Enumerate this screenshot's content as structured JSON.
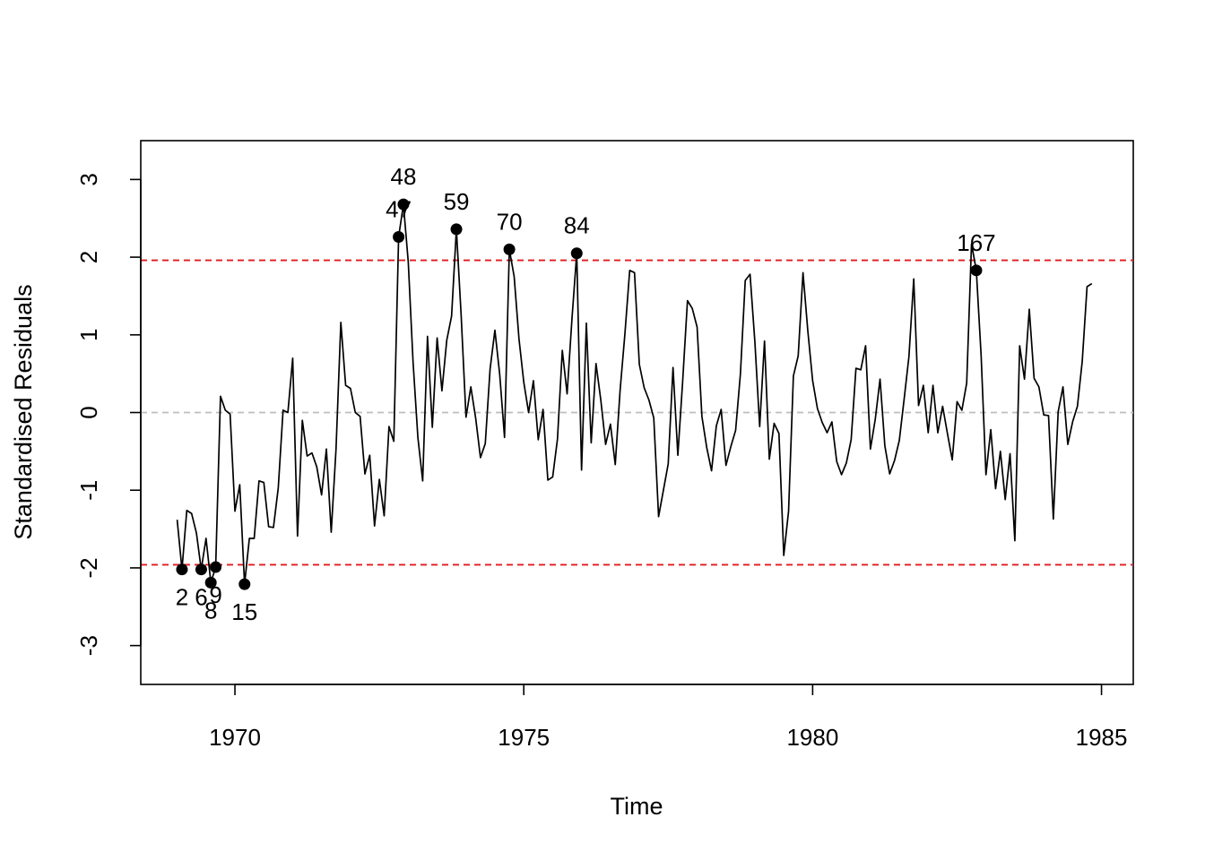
{
  "chart_data": {
    "type": "line",
    "title": "",
    "xlabel": "Time",
    "ylabel": "Standardised Residuals",
    "xlim": [
      1968.37,
      1985.55
    ],
    "ylim": [
      -3.5,
      3.5
    ],
    "x_ticks": [
      1970,
      1975,
      1980,
      1985
    ],
    "y_ticks": [
      -3,
      -2,
      -1,
      0,
      1,
      2,
      3
    ],
    "x_tick_labels": [
      "1970",
      "1975",
      "1980",
      "1985"
    ],
    "y_tick_labels": [
      "-3",
      "-2",
      "-1",
      "0",
      "1",
      "2",
      "3"
    ],
    "start": 1969.0,
    "frequency": 12,
    "series": [
      {
        "values": [
          -1.38,
          -2.02,
          -1.26,
          -1.3,
          -1.55,
          -2.02,
          -1.62,
          -2.19,
          -1.99,
          0.21,
          0.03,
          -0.02,
          -1.27,
          -0.93,
          -2.21,
          -1.62,
          -1.62,
          -0.88,
          -0.9,
          -1.47,
          -1.48,
          -0.97,
          0.03,
          0.0,
          0.7,
          -1.59,
          -0.1,
          -0.56,
          -0.52,
          -0.7,
          -1.06,
          -0.47,
          -1.54,
          -0.47,
          1.16,
          0.35,
          0.31,
          0.0,
          -0.05,
          -0.79,
          -0.55,
          -1.46,
          -0.86,
          -1.33,
          -0.18,
          -0.37,
          2.26,
          2.68,
          1.94,
          0.65,
          -0.32,
          -0.88,
          0.98,
          -0.19,
          0.96,
          0.28,
          0.93,
          1.24,
          2.36,
          1.24,
          -0.06,
          0.33,
          -0.07,
          -0.58,
          -0.4,
          0.56,
          1.06,
          0.49,
          -0.32,
          2.1,
          1.75,
          0.95,
          0.39,
          0.0,
          0.41,
          -0.35,
          0.04,
          -0.87,
          -0.83,
          -0.34,
          0.8,
          0.24,
          1.2,
          2.05,
          -0.74,
          1.15,
          -0.39,
          0.63,
          0.16,
          -0.41,
          -0.15,
          -0.67,
          0.28,
          1.01,
          1.83,
          1.8,
          0.62,
          0.32,
          0.16,
          -0.07,
          -1.34,
          -1.0,
          -0.66,
          0.58,
          -0.55,
          0.4,
          1.44,
          1.34,
          1.1,
          -0.05,
          -0.45,
          -0.75,
          -0.17,
          0.04,
          -0.68,
          -0.44,
          -0.23,
          0.5,
          1.7,
          1.78,
          0.91,
          -0.18,
          0.92,
          -0.6,
          -0.14,
          -0.27,
          -1.84,
          -1.27,
          0.47,
          0.73,
          1.8,
          1.05,
          0.41,
          0.05,
          -0.13,
          -0.26,
          -0.12,
          -0.63,
          -0.8,
          -0.65,
          -0.35,
          0.57,
          0.55,
          0.86,
          -0.47,
          -0.09,
          0.43,
          -0.43,
          -0.79,
          -0.62,
          -0.36,
          0.17,
          0.72,
          1.72,
          0.09,
          0.35,
          -0.26,
          0.35,
          -0.26,
          0.08,
          -0.27,
          -0.61,
          0.14,
          0.03,
          0.38,
          2.17,
          1.83,
          0.73,
          -0.8,
          -0.22,
          -0.98,
          -0.5,
          -1.12,
          -0.53,
          -1.65,
          0.86,
          0.43,
          1.33,
          0.44,
          0.33,
          -0.03,
          -0.04,
          -1.37,
          0.01,
          0.33,
          -0.41,
          -0.12,
          0.08,
          0.66,
          1.62,
          1.66
        ]
      }
    ],
    "reference_lines": [
      {
        "y": 1.96,
        "color": "#e31a1c",
        "style": "dashed"
      },
      {
        "y": -1.96,
        "color": "#e31a1c",
        "style": "dashed"
      },
      {
        "y": 0,
        "color": "#bebebe",
        "style": "dashed"
      }
    ],
    "highlighted_points": [
      {
        "index": 2,
        "label": "2",
        "label_pos": "below"
      },
      {
        "index": 6,
        "label": "6",
        "label_pos": "below"
      },
      {
        "index": 8,
        "label": "8",
        "label_pos": "below"
      },
      {
        "index": 9,
        "label": "9",
        "label_pos": "below"
      },
      {
        "index": 15,
        "label": "15",
        "label_pos": "below"
      },
      {
        "index": 47,
        "label": "47",
        "label_pos": "above"
      },
      {
        "index": 48,
        "label": "48",
        "label_pos": "above"
      },
      {
        "index": 59,
        "label": "59",
        "label_pos": "above"
      },
      {
        "index": 70,
        "label": "70",
        "label_pos": "above"
      },
      {
        "index": 84,
        "label": "84",
        "label_pos": "above"
      },
      {
        "index": 167,
        "label": "167",
        "label_pos": "above"
      }
    ],
    "colors": {
      "line": "#000000",
      "threshold": "#e31a1c",
      "zero_line": "#bebebe",
      "point": "#000000"
    },
    "grid": false,
    "legend": "none"
  }
}
